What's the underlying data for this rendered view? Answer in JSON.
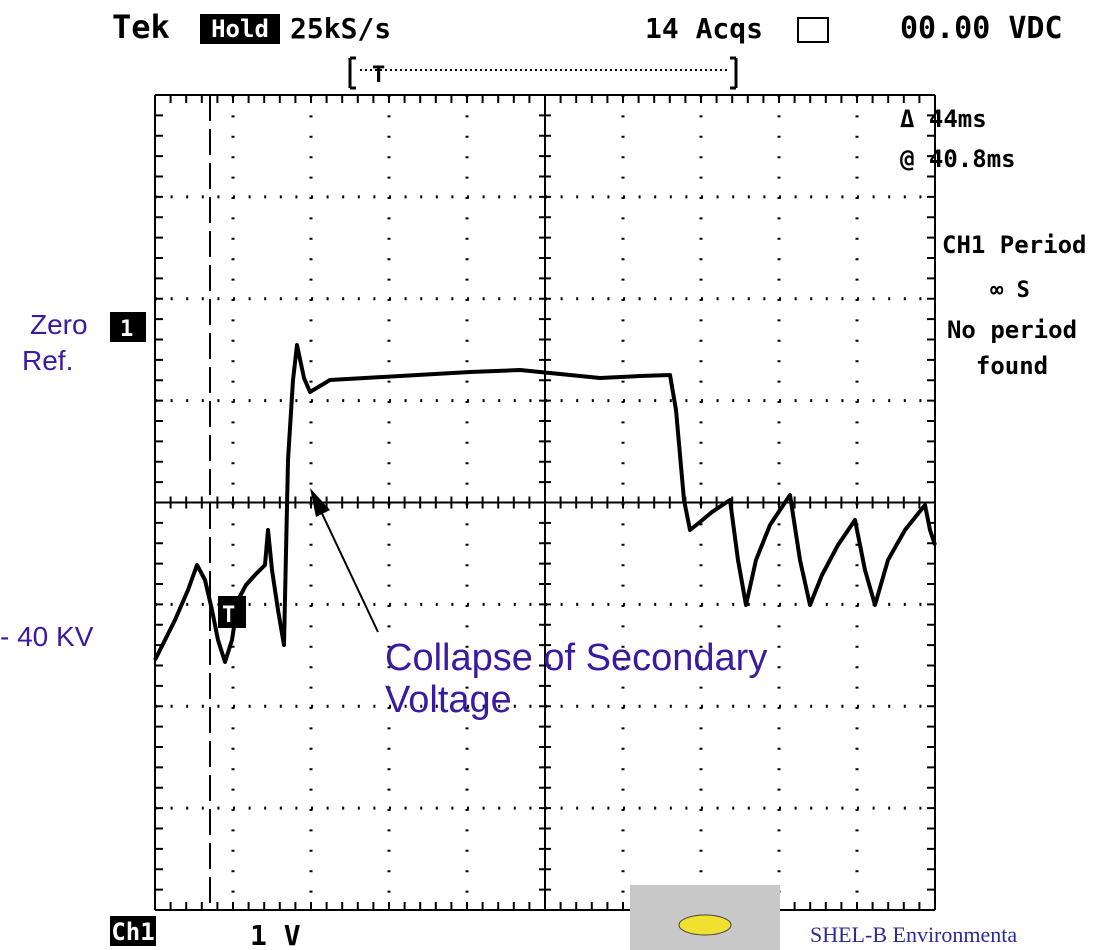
{
  "header": {
    "brand": "Tek",
    "mode": "Hold",
    "sample_rate": "25kS/s",
    "acquisitions": "14 Acqs",
    "readout": "00.00 VDC"
  },
  "markers": {
    "trigger_position": "T",
    "channel_ground": "1",
    "trigger_level": "T"
  },
  "cursor": {
    "delta": "Δ 44ms",
    "at": "@ 40.8ms"
  },
  "measurement": {
    "label": "CH1 Period",
    "value": "∞ S",
    "status": [
      "No period",
      "found"
    ]
  },
  "annotations": {
    "zero_ref": [
      "Zero",
      "Ref."
    ],
    "level": "- 40 KV",
    "callout": [
      "Collapse of Secondary",
      "Voltage"
    ]
  },
  "footer": {
    "channel": "Ch1",
    "scale": "1 V",
    "credit": "SHEL-B Environmenta"
  }
}
